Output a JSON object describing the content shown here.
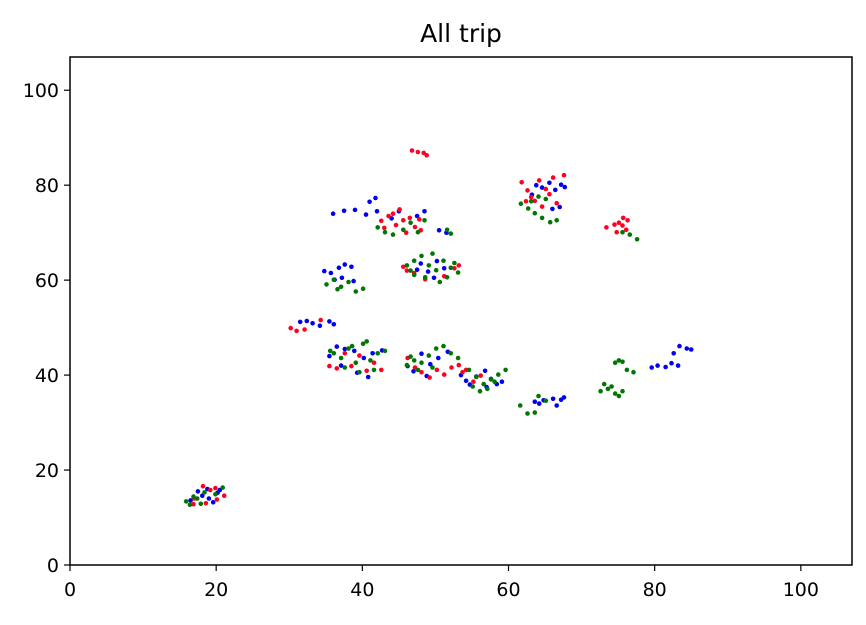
{
  "chart_data": {
    "type": "scatter",
    "title": "All trip",
    "xlabel": "",
    "ylabel": "",
    "xlim": [
      0,
      107
    ],
    "ylim": [
      0,
      107
    ],
    "xticks": [
      0,
      20,
      40,
      60,
      80,
      100
    ],
    "yticks": [
      0,
      20,
      40,
      60,
      80,
      100
    ],
    "grid": false,
    "legend": "none",
    "colors": {
      "blue": "#0000ee",
      "red": "#ff0022",
      "green": "#007700"
    },
    "series": [
      {
        "color": "#0000ee",
        "points": [
          [
            17.5,
            15.5
          ],
          [
            18.8,
            16.0
          ],
          [
            20.2,
            15.2
          ],
          [
            19.0,
            14.0
          ],
          [
            16.5,
            13.6
          ],
          [
            20.5,
            15.8
          ],
          [
            18.1,
            14.6
          ],
          [
            19.6,
            13.2
          ],
          [
            36.0,
            74.0
          ],
          [
            37.5,
            74.6
          ],
          [
            39.0,
            74.8
          ],
          [
            40.5,
            73.8
          ],
          [
            42.0,
            74.5
          ],
          [
            41.0,
            76.5
          ],
          [
            41.8,
            77.3
          ],
          [
            44.0,
            73.0
          ],
          [
            45.0,
            74.5
          ],
          [
            47.5,
            73.5
          ],
          [
            48.5,
            74.5
          ],
          [
            50.5,
            70.5
          ],
          [
            51.5,
            70.0
          ],
          [
            63.8,
            80.0
          ],
          [
            64.6,
            79.5
          ],
          [
            65.6,
            80.5
          ],
          [
            66.4,
            79.0
          ],
          [
            67.2,
            80.1
          ],
          [
            67.7,
            79.6
          ],
          [
            66.0,
            75.0
          ],
          [
            67.0,
            75.4
          ],
          [
            63.2,
            78.0
          ],
          [
            34.8,
            61.9
          ],
          [
            35.7,
            61.5
          ],
          [
            36.8,
            62.6
          ],
          [
            37.6,
            63.3
          ],
          [
            38.5,
            62.8
          ],
          [
            37.2,
            60.5
          ],
          [
            38.8,
            59.8
          ],
          [
            36.2,
            60.1
          ],
          [
            31.5,
            51.2
          ],
          [
            32.4,
            51.4
          ],
          [
            33.2,
            50.9
          ],
          [
            34.2,
            50.4
          ],
          [
            35.5,
            51.3
          ],
          [
            36.1,
            50.7
          ],
          [
            36.5,
            46.0
          ],
          [
            37.6,
            45.5
          ],
          [
            38.9,
            45.1
          ],
          [
            40.2,
            43.6
          ],
          [
            41.4,
            44.6
          ],
          [
            42.7,
            45.2
          ],
          [
            39.3,
            40.5
          ],
          [
            40.8,
            39.6
          ],
          [
            37.1,
            42.0
          ],
          [
            35.5,
            44.0
          ],
          [
            48.1,
            44.5
          ],
          [
            49.3,
            42.3
          ],
          [
            50.4,
            43.6
          ],
          [
            51.7,
            44.9
          ],
          [
            47.0,
            40.8
          ],
          [
            46.2,
            41.9
          ],
          [
            48.8,
            39.8
          ],
          [
            53.5,
            40.0
          ],
          [
            54.2,
            38.8
          ],
          [
            55.6,
            39.7
          ],
          [
            54.7,
            38.0
          ],
          [
            56.8,
            40.9
          ],
          [
            57.6,
            39.2
          ],
          [
            58.4,
            38.1
          ],
          [
            59.1,
            38.6
          ],
          [
            57.0,
            37.5
          ],
          [
            48.0,
            63.5
          ],
          [
            49.0,
            61.8
          ],
          [
            50.2,
            64.0
          ],
          [
            47.5,
            62.2
          ],
          [
            51.2,
            62.5
          ],
          [
            49.8,
            60.5
          ],
          [
            63.6,
            34.4
          ],
          [
            64.8,
            34.7
          ],
          [
            66.1,
            35.0
          ],
          [
            67.2,
            34.8
          ],
          [
            67.6,
            35.3
          ],
          [
            66.6,
            33.6
          ],
          [
            64.2,
            34.0
          ],
          [
            79.6,
            41.6
          ],
          [
            80.4,
            42.0
          ],
          [
            81.5,
            41.7
          ],
          [
            82.3,
            42.5
          ],
          [
            83.2,
            42.0
          ],
          [
            82.6,
            44.6
          ],
          [
            83.4,
            46.1
          ],
          [
            84.4,
            45.6
          ],
          [
            85.0,
            45.4
          ]
        ]
      },
      {
        "color": "#ff0022",
        "points": [
          [
            17.0,
            14.0
          ],
          [
            18.2,
            16.6
          ],
          [
            19.2,
            15.8
          ],
          [
            20.1,
            13.8
          ],
          [
            21.1,
            14.6
          ],
          [
            18.6,
            13.0
          ],
          [
            16.9,
            12.8
          ],
          [
            19.9,
            16.2
          ],
          [
            46.8,
            87.3
          ],
          [
            47.6,
            87.0
          ],
          [
            48.4,
            86.8
          ],
          [
            48.8,
            86.3
          ],
          [
            42.6,
            72.5
          ],
          [
            43.6,
            73.5
          ],
          [
            44.6,
            71.6
          ],
          [
            45.6,
            72.6
          ],
          [
            46.5,
            73.1
          ],
          [
            47.2,
            71.2
          ],
          [
            48.0,
            70.5
          ],
          [
            45.1,
            74.9
          ],
          [
            43.0,
            71.0
          ],
          [
            46.0,
            70.0
          ],
          [
            47.8,
            72.8
          ],
          [
            44.2,
            74.0
          ],
          [
            61.8,
            80.6
          ],
          [
            62.6,
            78.9
          ],
          [
            63.6,
            76.7
          ],
          [
            64.6,
            75.5
          ],
          [
            65.6,
            78.1
          ],
          [
            66.6,
            76.2
          ],
          [
            67.6,
            82.1
          ],
          [
            66.1,
            81.6
          ],
          [
            65.1,
            79.2
          ],
          [
            64.2,
            81.0
          ],
          [
            63.1,
            77.5
          ],
          [
            62.4,
            76.6
          ],
          [
            73.4,
            71.1
          ],
          [
            74.5,
            71.7
          ],
          [
            75.1,
            72.1
          ],
          [
            75.6,
            71.5
          ],
          [
            76.3,
            72.6
          ],
          [
            74.8,
            70.1
          ],
          [
            76.1,
            70.6
          ],
          [
            75.7,
            73.1
          ],
          [
            46.1,
            62.0
          ],
          [
            47.1,
            61.5
          ],
          [
            45.6,
            62.8
          ],
          [
            52.6,
            62.5
          ],
          [
            53.2,
            63.1
          ],
          [
            48.6,
            60.2
          ],
          [
            51.2,
            60.8
          ],
          [
            30.2,
            49.9
          ],
          [
            31.0,
            49.3
          ],
          [
            32.1,
            49.6
          ],
          [
            34.3,
            51.6
          ],
          [
            35.5,
            41.9
          ],
          [
            36.5,
            41.4
          ],
          [
            38.5,
            41.9
          ],
          [
            40.6,
            40.9
          ],
          [
            41.6,
            42.6
          ],
          [
            42.6,
            41.1
          ],
          [
            39.6,
            44.1
          ],
          [
            37.6,
            44.6
          ],
          [
            46.2,
            43.6
          ],
          [
            47.2,
            41.6
          ],
          [
            48.1,
            40.6
          ],
          [
            49.2,
            39.5
          ],
          [
            50.2,
            41.1
          ],
          [
            51.2,
            40.1
          ],
          [
            52.2,
            41.6
          ],
          [
            53.2,
            42.1
          ],
          [
            54.2,
            41.1
          ],
          [
            55.2,
            38.6
          ],
          [
            53.7,
            40.6
          ],
          [
            56.2,
            39.9
          ]
        ]
      },
      {
        "color": "#007700",
        "points": [
          [
            15.9,
            13.4
          ],
          [
            16.9,
            14.4
          ],
          [
            17.9,
            12.9
          ],
          [
            19.9,
            14.9
          ],
          [
            20.9,
            16.3
          ],
          [
            18.4,
            15.3
          ],
          [
            16.4,
            12.7
          ],
          [
            17.4,
            14.0
          ],
          [
            45.6,
            70.6
          ],
          [
            46.6,
            72.1
          ],
          [
            47.6,
            70.1
          ],
          [
            48.5,
            72.6
          ],
          [
            42.1,
            71.1
          ],
          [
            43.1,
            70.1
          ],
          [
            44.2,
            69.6
          ],
          [
            51.6,
            70.6
          ],
          [
            52.1,
            69.8
          ],
          [
            61.7,
            76.1
          ],
          [
            62.7,
            75.1
          ],
          [
            63.6,
            74.1
          ],
          [
            64.6,
            73.1
          ],
          [
            65.7,
            72.2
          ],
          [
            66.6,
            72.6
          ],
          [
            65.1,
            77.1
          ],
          [
            63.1,
            76.6
          ],
          [
            64.1,
            77.6
          ],
          [
            75.6,
            70.1
          ],
          [
            76.6,
            69.6
          ],
          [
            77.6,
            68.6
          ],
          [
            46.1,
            63.1
          ],
          [
            47.1,
            64.1
          ],
          [
            48.1,
            65.1
          ],
          [
            49.1,
            63.1
          ],
          [
            50.1,
            62.1
          ],
          [
            51.1,
            64.1
          ],
          [
            52.1,
            62.6
          ],
          [
            53.1,
            61.6
          ],
          [
            48.6,
            60.6
          ],
          [
            47.1,
            61.1
          ],
          [
            46.6,
            62.0
          ],
          [
            49.6,
            65.6
          ],
          [
            51.6,
            60.6
          ],
          [
            50.6,
            59.6
          ],
          [
            52.6,
            63.6
          ],
          [
            35.1,
            59.1
          ],
          [
            36.1,
            60.1
          ],
          [
            37.1,
            58.6
          ],
          [
            38.1,
            59.6
          ],
          [
            39.1,
            57.6
          ],
          [
            40.1,
            58.2
          ],
          [
            36.6,
            58.1
          ],
          [
            36.1,
            44.6
          ],
          [
            37.1,
            43.6
          ],
          [
            38.1,
            45.6
          ],
          [
            39.1,
            42.6
          ],
          [
            40.1,
            46.6
          ],
          [
            41.1,
            43.1
          ],
          [
            42.1,
            44.6
          ],
          [
            43.1,
            45.1
          ],
          [
            37.6,
            41.6
          ],
          [
            39.6,
            40.6
          ],
          [
            41.6,
            41.1
          ],
          [
            35.6,
            45.1
          ],
          [
            40.6,
            47.1
          ],
          [
            38.6,
            46.1
          ],
          [
            46.1,
            42.1
          ],
          [
            47.1,
            43.1
          ],
          [
            48.1,
            42.6
          ],
          [
            49.1,
            44.1
          ],
          [
            50.1,
            45.6
          ],
          [
            51.1,
            46.1
          ],
          [
            52.1,
            44.6
          ],
          [
            53.1,
            43.6
          ],
          [
            49.6,
            41.6
          ],
          [
            47.6,
            41.1
          ],
          [
            46.6,
            43.9
          ],
          [
            54.6,
            41.1
          ],
          [
            55.6,
            39.6
          ],
          [
            56.6,
            38.1
          ],
          [
            57.6,
            39.1
          ],
          [
            58.6,
            40.1
          ],
          [
            59.6,
            41.1
          ],
          [
            56.1,
            36.6
          ],
          [
            57.1,
            37.1
          ],
          [
            55.1,
            37.6
          ],
          [
            58.1,
            38.6
          ],
          [
            61.6,
            33.6
          ],
          [
            62.6,
            31.9
          ],
          [
            63.6,
            32.1
          ],
          [
            64.1,
            35.6
          ],
          [
            65.1,
            34.6
          ],
          [
            72.6,
            36.6
          ],
          [
            73.1,
            38.1
          ],
          [
            73.6,
            37.1
          ],
          [
            74.1,
            37.6
          ],
          [
            74.6,
            36.1
          ],
          [
            75.1,
            35.6
          ],
          [
            75.6,
            36.6
          ],
          [
            76.2,
            41.1
          ],
          [
            77.1,
            40.6
          ],
          [
            74.6,
            42.6
          ],
          [
            75.1,
            43.1
          ],
          [
            75.6,
            42.8
          ]
        ]
      }
    ]
  }
}
